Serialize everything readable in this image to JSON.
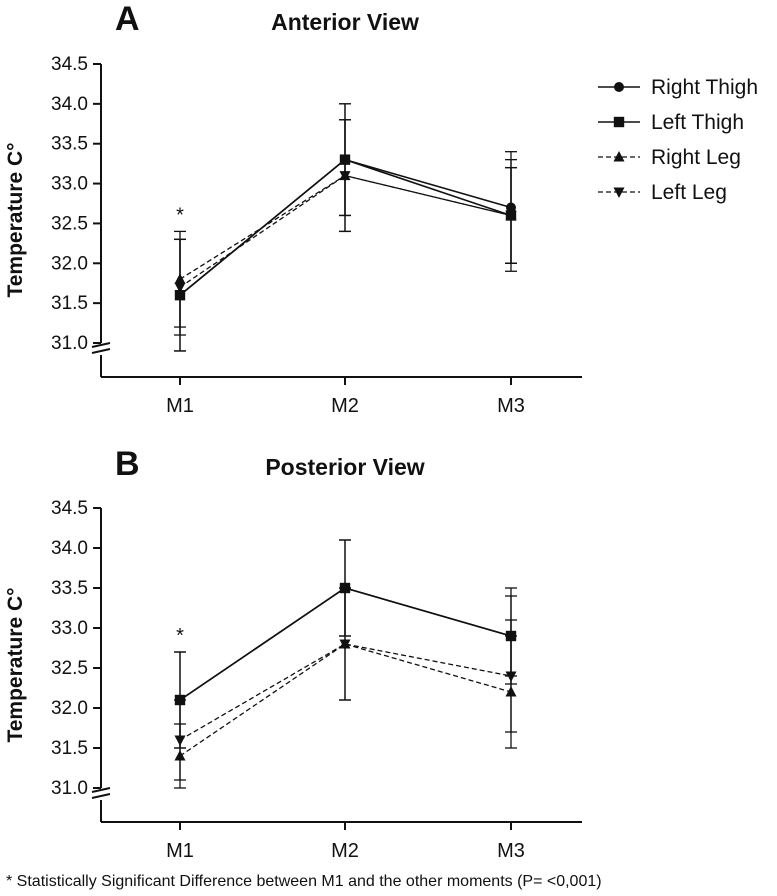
{
  "chart_data": [
    {
      "type": "line",
      "panel_label": "A",
      "title": "Anterior View",
      "xlabel": "",
      "ylabel": "Temperature C°",
      "categories": [
        "M1",
        "M2",
        "M3"
      ],
      "ylim": [
        31.0,
        34.5
      ],
      "yticks": [
        "31.0",
        "31.5",
        "32.0",
        "32.5",
        "33.0",
        "33.5",
        "34.0",
        "34.5"
      ],
      "significance_marker": {
        "text": "*",
        "category": "M1"
      },
      "series": [
        {
          "name": "Right Thigh",
          "marker": "circle",
          "dash": "solid",
          "values": [
            31.6,
            33.3,
            32.7
          ],
          "error": [
            0.7,
            0.7,
            0.7
          ]
        },
        {
          "name": "Left Thigh",
          "marker": "square",
          "dash": "solid",
          "values": [
            31.6,
            33.3,
            32.6
          ],
          "error": [
            0.7,
            0.7,
            0.7
          ]
        },
        {
          "name": "Right Leg",
          "marker": "triangle-up",
          "dash": "dashed",
          "values": [
            31.8,
            33.1,
            32.6
          ],
          "error": [
            0.6,
            0.7,
            0.6
          ]
        },
        {
          "name": "Left Leg",
          "marker": "triangle-down",
          "dash": "dashed",
          "values": [
            31.7,
            33.1,
            32.6
          ],
          "error": [
            0.6,
            0.7,
            0.6
          ]
        }
      ]
    },
    {
      "type": "line",
      "panel_label": "B",
      "title": "Posterior View",
      "xlabel": "",
      "ylabel": "Temperature C°",
      "categories": [
        "M1",
        "M2",
        "M3"
      ],
      "ylim": [
        31.0,
        34.5
      ],
      "yticks": [
        "31.0",
        "31.5",
        "32.0",
        "32.5",
        "33.0",
        "33.5",
        "34.0",
        "34.5"
      ],
      "significance_marker": {
        "text": "*",
        "category": "M1"
      },
      "series": [
        {
          "name": "Right Thigh",
          "marker": "circle",
          "dash": "solid",
          "values": [
            32.1,
            33.5,
            32.9
          ],
          "error": [
            0.6,
            0.6,
            0.6
          ]
        },
        {
          "name": "Left Thigh",
          "marker": "square",
          "dash": "solid",
          "values": [
            32.1,
            33.5,
            32.9
          ],
          "error": [
            0.6,
            0.6,
            0.5
          ]
        },
        {
          "name": "Right Leg",
          "marker": "triangle-up",
          "dash": "dashed",
          "values": [
            31.4,
            32.8,
            32.2
          ],
          "error": [
            0.4,
            0.7,
            0.7
          ]
        },
        {
          "name": "Left Leg",
          "marker": "triangle-down",
          "dash": "dashed",
          "values": [
            31.6,
            32.8,
            32.4
          ],
          "error": [
            0.5,
            0.7,
            0.7
          ]
        }
      ]
    }
  ],
  "legend": {
    "position": "top-right",
    "items": [
      {
        "name": "Right Thigh",
        "marker": "circle",
        "dash": "solid"
      },
      {
        "name": "Left Thigh",
        "marker": "square",
        "dash": "solid"
      },
      {
        "name": "Right Leg",
        "marker": "triangle-up",
        "dash": "dashed"
      },
      {
        "name": "Left Leg",
        "marker": "triangle-down",
        "dash": "dashed"
      }
    ]
  },
  "colors": {
    "ink": "#111111",
    "background": "#ffffff"
  },
  "footnote": "* Statistically Significant Difference between M1 and the other moments (P= <0,001)"
}
